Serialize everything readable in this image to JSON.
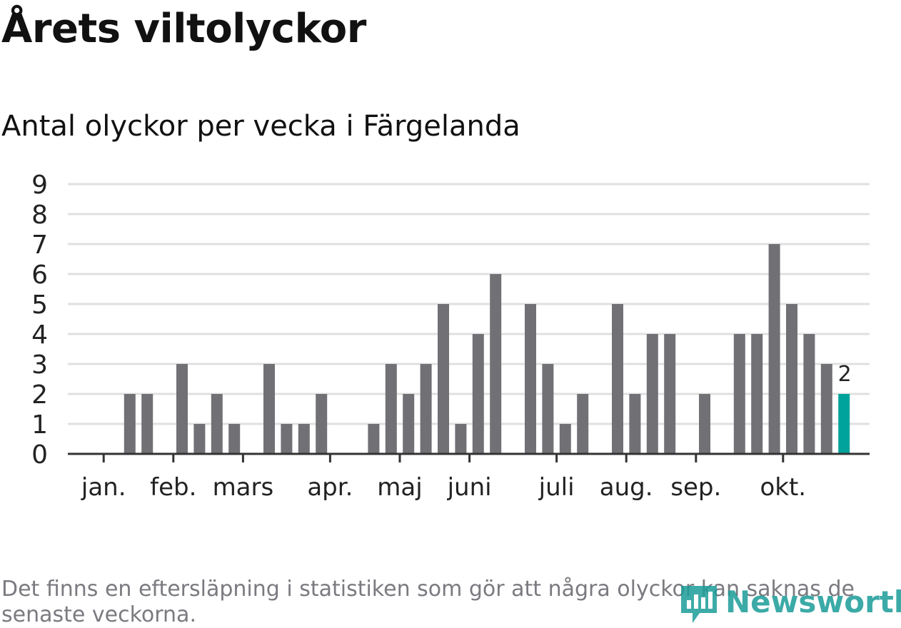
{
  "header": {
    "title": "Årets viltolyckor",
    "subtitle": "Antal olyckor per vecka i Färgelanda"
  },
  "footnote": "Det finns en eftersläpning i statistiken som gör att några olyckor kan saknas de senaste veckorna.",
  "brand": {
    "name": "Newsworthy",
    "color": "#1b9c98",
    "icon": "newsworthy-logo-icon"
  },
  "colors": {
    "bar": "#717075",
    "highlight": "#00a39b",
    "grid": "#e0e0e0",
    "axis": "#333333"
  },
  "chart_data": {
    "type": "bar",
    "title": "Antal olyckor per vecka i Färgelanda",
    "xlabel": "",
    "ylabel": "",
    "ylim": [
      0,
      9
    ],
    "yticks": [
      0,
      1,
      2,
      3,
      4,
      5,
      6,
      7,
      8,
      9
    ],
    "grid": true,
    "weeks": [
      1,
      2,
      3,
      4,
      5,
      6,
      7,
      8,
      9,
      10,
      11,
      12,
      13,
      14,
      15,
      16,
      17,
      18,
      19,
      20,
      21,
      22,
      23,
      24,
      25,
      26,
      27,
      28,
      29,
      30,
      31,
      32,
      33,
      34,
      35,
      36,
      37,
      38,
      39,
      40,
      41,
      42,
      43,
      44
    ],
    "values": [
      0,
      0,
      2,
      2,
      0,
      3,
      1,
      2,
      1,
      0,
      3,
      1,
      1,
      2,
      0,
      0,
      1,
      3,
      2,
      3,
      5,
      1,
      4,
      6,
      0,
      5,
      3,
      1,
      2,
      0,
      5,
      2,
      4,
      4,
      0,
      2,
      0,
      4,
      4,
      7,
      5,
      4,
      3,
      2
    ],
    "highlight_index": 43,
    "highlight_label": "2",
    "month_ticks": [
      {
        "label": "jan.",
        "week": 1.5
      },
      {
        "label": "feb.",
        "week": 5.5
      },
      {
        "label": "mars",
        "week": 9.5
      },
      {
        "label": "apr.",
        "week": 14.5
      },
      {
        "label": "maj",
        "week": 18.5
      },
      {
        "label": "juni",
        "week": 22.5
      },
      {
        "label": "juli",
        "week": 27.5
      },
      {
        "label": "aug.",
        "week": 31.5
      },
      {
        "label": "sep.",
        "week": 35.5
      },
      {
        "label": "okt.",
        "week": 40.5
      }
    ]
  }
}
